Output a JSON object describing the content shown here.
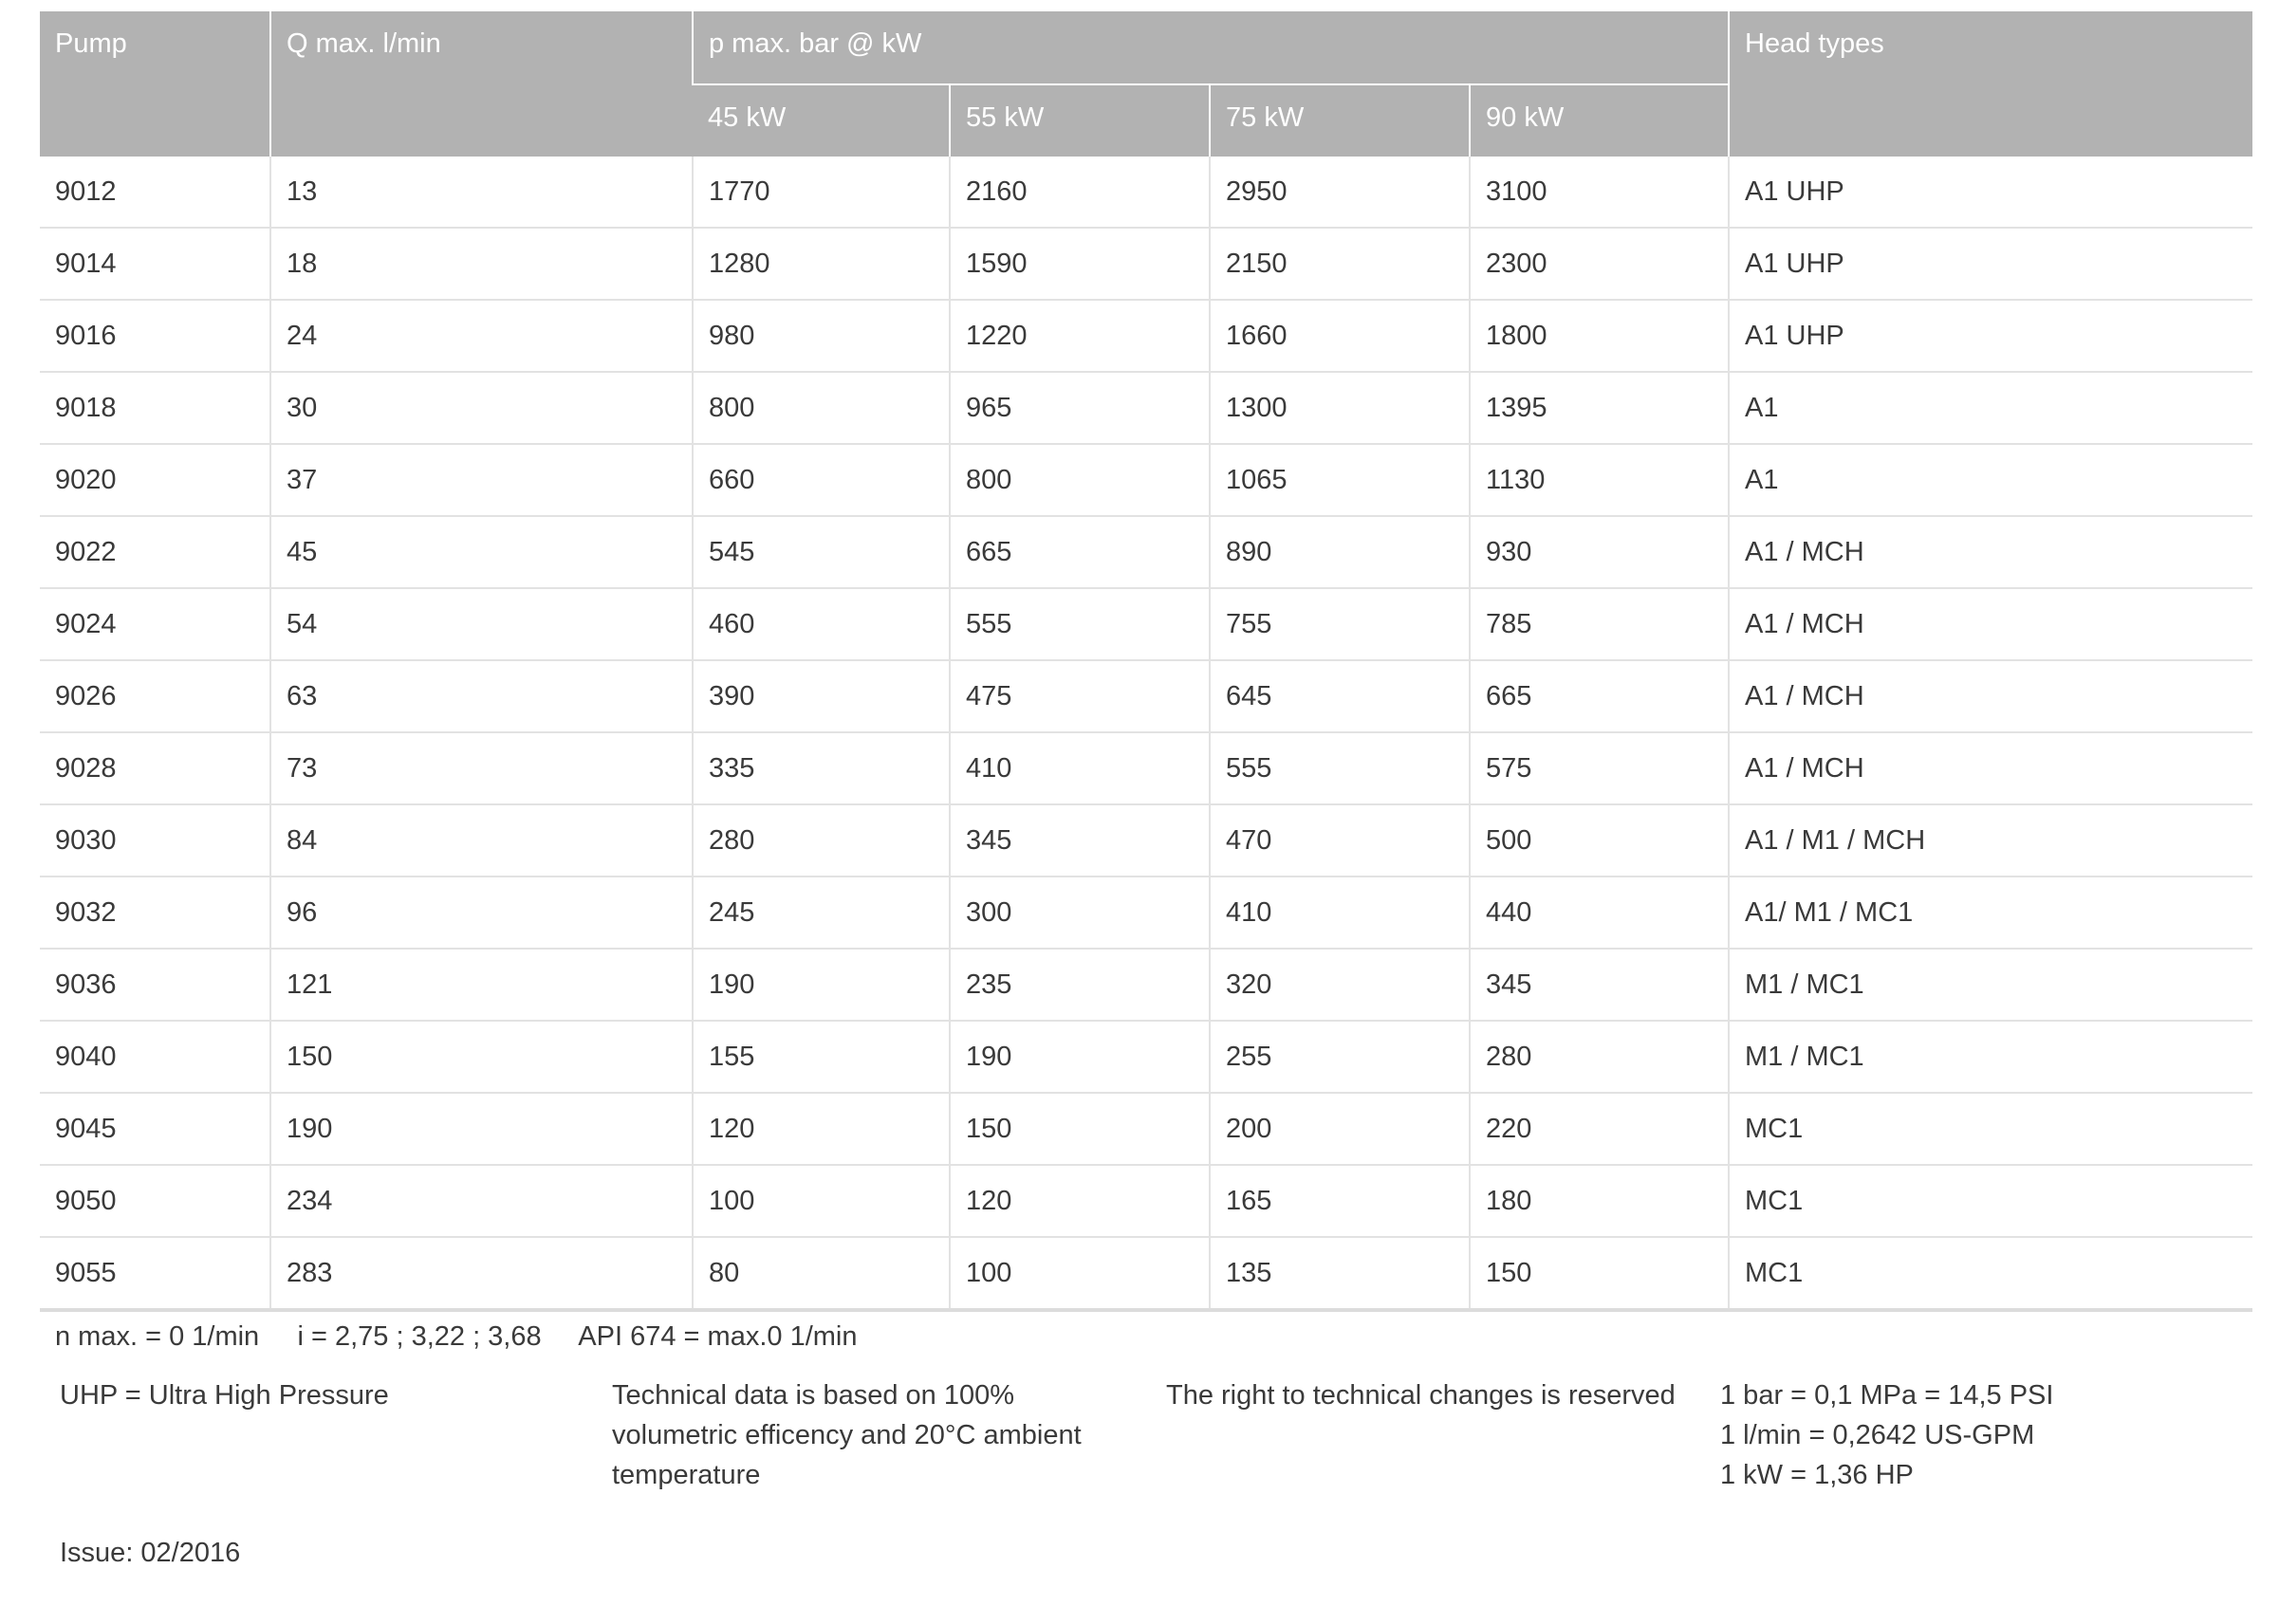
{
  "header": {
    "pump": "Pump",
    "q_max": "Q max. l/min",
    "p_max": "p max. bar @ kW",
    "head_types": "Head types",
    "kw": [
      "45 kW",
      "55 kW",
      "75 kW",
      "90 kW"
    ]
  },
  "rows": [
    [
      "9012",
      "13",
      "1770",
      "2160",
      "2950",
      "3100",
      "A1 UHP"
    ],
    [
      "9014",
      "18",
      "1280",
      "1590",
      "2150",
      "2300",
      "A1 UHP"
    ],
    [
      "9016",
      "24",
      "980",
      "1220",
      "1660",
      "1800",
      "A1 UHP"
    ],
    [
      "9018",
      "30",
      "800",
      "965",
      "1300",
      "1395",
      "A1"
    ],
    [
      "9020",
      "37",
      "660",
      "800",
      "1065",
      "1130",
      "A1"
    ],
    [
      "9022",
      "45",
      "545",
      "665",
      "890",
      "930",
      "A1 / MCH"
    ],
    [
      "9024",
      "54",
      "460",
      "555",
      "755",
      "785",
      "A1 / MCH"
    ],
    [
      "9026",
      "63",
      "390",
      "475",
      "645",
      "665",
      "A1 / MCH"
    ],
    [
      "9028",
      "73",
      "335",
      "410",
      "555",
      "575",
      "A1 / MCH"
    ],
    [
      "9030",
      "84",
      "280",
      "345",
      "470",
      "500",
      "A1 / M1 / MCH"
    ],
    [
      "9032",
      "96",
      "245",
      "300",
      "410",
      "440",
      "A1/ M1 / MC1"
    ],
    [
      "9036",
      "121",
      "190",
      "235",
      "320",
      "345",
      "M1 / MC1"
    ],
    [
      "9040",
      "150",
      "155",
      "190",
      "255",
      "280",
      "M1 / MC1"
    ],
    [
      "9045",
      "190",
      "120",
      "150",
      "200",
      "220",
      "MC1"
    ],
    [
      "9050",
      "234",
      "100",
      "120",
      "165",
      "180",
      "MC1"
    ],
    [
      "9055",
      "283",
      "80",
      "100",
      "135",
      "150",
      "MC1"
    ]
  ],
  "notes": {
    "line1": "n max. = 0 1/min     i = 2,75 ; 3,22 ; 3,68     API 674 = max.0 1/min",
    "uhp": "UHP = Ultra High Pressure",
    "technical": [
      "Technical data is based on 100%",
      "volumetric efficency and 20°C ambient",
      "temperature"
    ],
    "reserved": "The right to technical changes is reserved",
    "conversions": [
      "1 bar = 0,1 MPa = 14,5 PSI",
      "1 l/min = 0,2642 US-GPM",
      "1 kW = 1,36 HP"
    ],
    "issue": "Issue: 02/2016"
  },
  "colors": {
    "header_bg": "#b2b2b2",
    "header_text": "#ffffff",
    "row_border": "#e2e2e2"
  }
}
